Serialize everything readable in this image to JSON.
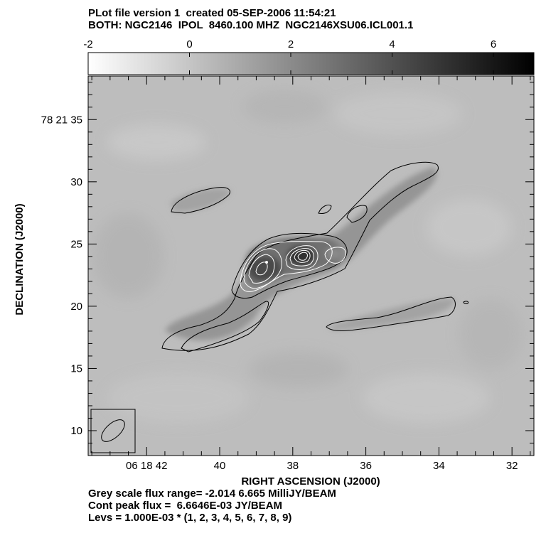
{
  "header": {
    "line1": "PLot file version 1  created 05-SEP-2006 11:54:21",
    "line2": "BOTH: NGC2146  IPOL  8460.100 MHZ  NGC2146XSU06.ICL001.1"
  },
  "footer": {
    "line1": "Grey scale flux range= -2.014 6.665 MilliJY/BEAM",
    "line2": "Cont peak flux =  6.6646E-03 JY/BEAM",
    "line3": "Levs = 1.000E-03 * (1, 2, 3, 4, 5, 6, 7, 8, 9)"
  },
  "chart_data": {
    "type": "heatmap",
    "xlabel": "RIGHT ASCENSION (J2000)",
    "ylabel": "DECLINATION (J2000)",
    "x_ticks": [
      "06 18 42",
      "40",
      "38",
      "36",
      "34",
      "32"
    ],
    "y_ticks": [
      "78 21 35",
      "30",
      "25",
      "20",
      "15",
      "10"
    ],
    "xlim_seconds_of_ra": [
      43.6,
      31.4
    ],
    "ylim_arcsec_of_dec": [
      8,
      38.5
    ],
    "colorbar": {
      "ticks": [
        "-2",
        "0",
        "2",
        "4",
        "6"
      ],
      "range": [
        -2.0,
        6.8
      ],
      "colors": [
        "#ffffff",
        "#000000"
      ]
    },
    "grey_scale_flux_range_mJy_per_beam": [
      -2.014,
      6.665
    ],
    "cont_peak_flux_Jy_per_beam": 0.0066646,
    "contour_base_Jy_per_beam": 0.001,
    "contour_levels": [
      1,
      2,
      3,
      4,
      5,
      6,
      7,
      8,
      9
    ],
    "contour_colors": {
      "low": "#000000",
      "high": "#ffffff"
    },
    "beam_ellipse_position": "bottom-left"
  }
}
